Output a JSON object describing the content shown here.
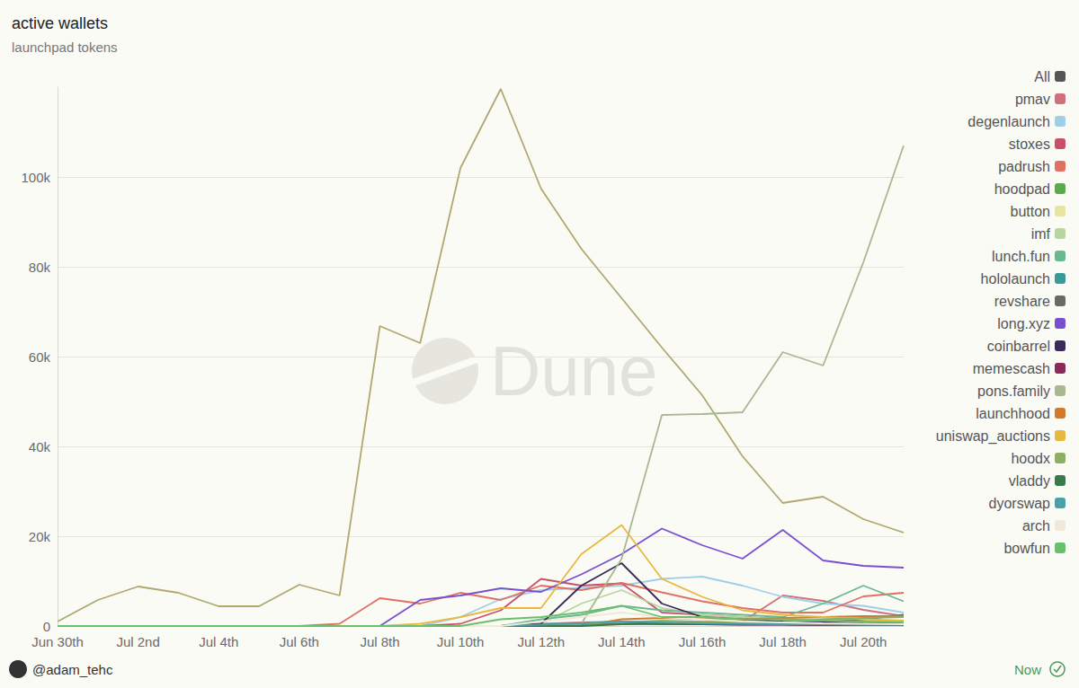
{
  "chart_data": {
    "type": "line",
    "title": "active wallets",
    "subtitle": "launchpad tokens",
    "watermark": "Dune",
    "credit": "@adam_tehc",
    "updated": "Now",
    "categories": [
      "Jun 30th",
      null,
      "Jul 2nd",
      null,
      "Jul 4th",
      null,
      "Jul 6th",
      null,
      "Jul 8th",
      null,
      "Jul 10th",
      null,
      "Jul 12th",
      null,
      "Jul 14th",
      null,
      "Jul 16th",
      null,
      "Jul 18th",
      null,
      "Jul 20th",
      null
    ],
    "ylim": [
      0,
      120000
    ],
    "yticks": [
      0,
      {
        "value": 20000,
        "label": "20k"
      },
      {
        "value": 40000,
        "label": "40k"
      },
      {
        "value": 60000,
        "label": "60k"
      },
      {
        "value": 80000,
        "label": "80k"
      },
      {
        "value": 100000,
        "label": "100k"
      }
    ],
    "grid": true,
    "legend": "right",
    "series": [
      {
        "color": "#b0a870",
        "values": [
          1000,
          5800,
          8800,
          7400,
          4400,
          4400,
          9200,
          6800,
          66800,
          63000,
          102000,
          119600,
          97400,
          84000,
          73000,
          62000,
          51400,
          37800,
          27400,
          28800,
          23800,
          20800
        ]
      },
      {
        "name": "All",
        "color": "#555555",
        "values": [
          null,
          null,
          null,
          null,
          null,
          null,
          null,
          null,
          null,
          null,
          null,
          null,
          null,
          null,
          null,
          null,
          null,
          null,
          null,
          null,
          null,
          null
        ]
      },
      {
        "name": "pmav",
        "color": "#d0707a",
        "values": [
          0,
          0,
          0,
          0,
          0,
          0,
          0,
          0,
          0,
          0,
          0,
          0,
          500,
          800,
          1000,
          800,
          900,
          1000,
          6800,
          5600,
          3600,
          2200
        ]
      },
      {
        "name": "degenlaunch",
        "color": "#9fcfe8",
        "values": [
          0,
          0,
          0,
          0,
          0,
          0,
          0,
          0,
          0,
          0,
          2000,
          6000,
          8000,
          8500,
          9000,
          10500,
          11000,
          9000,
          6500,
          5000,
          4500,
          3000
        ]
      },
      {
        "name": "stoxes",
        "color": "#c8506a",
        "values": [
          0,
          0,
          0,
          0,
          0,
          0,
          0,
          0,
          0,
          0,
          500,
          3500,
          10500,
          9000,
          9500,
          3000,
          2500,
          2000,
          1500,
          1200,
          1000,
          800
        ]
      },
      {
        "name": "padrush",
        "color": "#e07060",
        "values": [
          0,
          0,
          0,
          0,
          0,
          0,
          0,
          500,
          6200,
          5000,
          7400,
          5800,
          9000,
          8000,
          9600,
          7500,
          5500,
          4000,
          3000,
          3000,
          6600,
          7400
        ]
      },
      {
        "name": "hoodpad",
        "color": "#5aab4a",
        "values": [
          0,
          0,
          0,
          0,
          0,
          0,
          0,
          0,
          0,
          0,
          0,
          0,
          300,
          600,
          800,
          600,
          500,
          400,
          400,
          300,
          300,
          200
        ]
      },
      {
        "name": "button",
        "color": "#e8e4a0",
        "values": [
          0,
          0,
          0,
          0,
          0,
          0,
          0,
          0,
          0,
          0,
          0,
          0,
          0,
          500,
          1000,
          800,
          600,
          500,
          400,
          400,
          300,
          300
        ]
      },
      {
        "name": "imf",
        "color": "#b8d4a0",
        "values": [
          0,
          0,
          0,
          0,
          0,
          0,
          0,
          0,
          0,
          0,
          0,
          0,
          500,
          5000,
          8000,
          4000,
          2500,
          2000,
          1500,
          1500,
          1200,
          1000
        ]
      },
      {
        "name": "lunch.fun",
        "color": "#6ab890",
        "values": [
          0,
          0,
          0,
          0,
          0,
          0,
          0,
          0,
          0,
          0,
          0,
          0,
          1500,
          2500,
          4500,
          3500,
          3000,
          2500,
          2000,
          5000,
          9000,
          5500
        ]
      },
      {
        "name": "hololaunch",
        "color": "#3a9a9a",
        "values": [
          0,
          0,
          0,
          0,
          0,
          0,
          0,
          0,
          0,
          0,
          0,
          0,
          200,
          400,
          600,
          500,
          400,
          300,
          300,
          200,
          200,
          200
        ]
      },
      {
        "name": "revshare",
        "color": "#6a6a64",
        "values": [
          0,
          0,
          0,
          0,
          0,
          0,
          0,
          0,
          0,
          0,
          0,
          0,
          0,
          300,
          500,
          400,
          400,
          500,
          600,
          800,
          1500,
          2500
        ]
      },
      {
        "name": "long.xyz",
        "color": "#7a50d0",
        "values": [
          null,
          null,
          null,
          null,
          null,
          null,
          null,
          null,
          0,
          5800,
          6800,
          8400,
          7600,
          11500,
          16000,
          21700,
          18000,
          15000,
          21400,
          14600,
          13400,
          13000
        ]
      },
      {
        "name": "coinbarrel",
        "color": "#3a2a5a",
        "values": [
          0,
          0,
          0,
          0,
          0,
          0,
          0,
          0,
          0,
          0,
          0,
          0,
          500,
          9000,
          14000,
          5000,
          2000,
          1500,
          1000,
          800,
          600,
          500
        ]
      },
      {
        "name": "memescash",
        "color": "#8a2a5a",
        "values": [
          0,
          0,
          0,
          0,
          0,
          0,
          0,
          0,
          0,
          0,
          0,
          0,
          200,
          500,
          800,
          600,
          400,
          300,
          300,
          200,
          200,
          200
        ]
      },
      {
        "name": "pons.family",
        "color": "#a8b890",
        "values": [
          0,
          0,
          0,
          0,
          0,
          0,
          0,
          0,
          0,
          0,
          0,
          0,
          0,
          500,
          15000,
          47000,
          47200,
          47600,
          61000,
          58000,
          81000,
          107000
        ]
      },
      {
        "name": "launchhood",
        "color": "#d07a30",
        "values": [
          0,
          0,
          0,
          0,
          0,
          0,
          0,
          0,
          0,
          0,
          0,
          0,
          0,
          0,
          1500,
          1800,
          1600,
          1500,
          1800,
          2000,
          2200,
          2200
        ]
      },
      {
        "name": "uniswap_auctions",
        "color": "#e8b840",
        "values": [
          0,
          0,
          0,
          0,
          0,
          0,
          0,
          0,
          0,
          500,
          2000,
          4000,
          4000,
          16000,
          22500,
          10500,
          6500,
          3500,
          2500,
          2000,
          1500,
          1200
        ]
      },
      {
        "name": "hoodx",
        "color": "#8ab060",
        "values": [
          0,
          0,
          0,
          0,
          0,
          0,
          0,
          0,
          0,
          0,
          0,
          0,
          0,
          500,
          800,
          1200,
          1000,
          900,
          800,
          1500,
          1800,
          2000
        ]
      },
      {
        "name": "vladdy",
        "color": "#3a7a4a",
        "values": [
          0,
          0,
          0,
          0,
          0,
          0,
          0,
          0,
          0,
          0,
          0,
          0,
          0,
          0,
          400,
          600,
          500,
          400,
          400,
          300,
          300,
          300
        ]
      },
      {
        "name": "dyorswap",
        "color": "#4aa0a8",
        "values": [
          0,
          0,
          0,
          0,
          0,
          0,
          0,
          0,
          0,
          0,
          0,
          0,
          300,
          600,
          1000,
          800,
          600,
          500,
          400,
          400,
          300,
          300
        ]
      },
      {
        "name": "arch",
        "color": "#f0e8d8",
        "values": [
          0,
          0,
          0,
          0,
          0,
          0,
          0,
          0,
          0,
          0,
          0,
          0,
          1000,
          2000,
          3000,
          2000,
          1500,
          1000,
          800,
          600,
          500,
          400
        ]
      },
      {
        "name": "bowfun",
        "color": "#6ac06a",
        "values": [
          0,
          0,
          0,
          0,
          0,
          0,
          0,
          0,
          0,
          0,
          0,
          1500,
          2000,
          3000,
          4500,
          2000,
          2000,
          1500,
          1500,
          1200,
          1000,
          800
        ]
      }
    ]
  }
}
